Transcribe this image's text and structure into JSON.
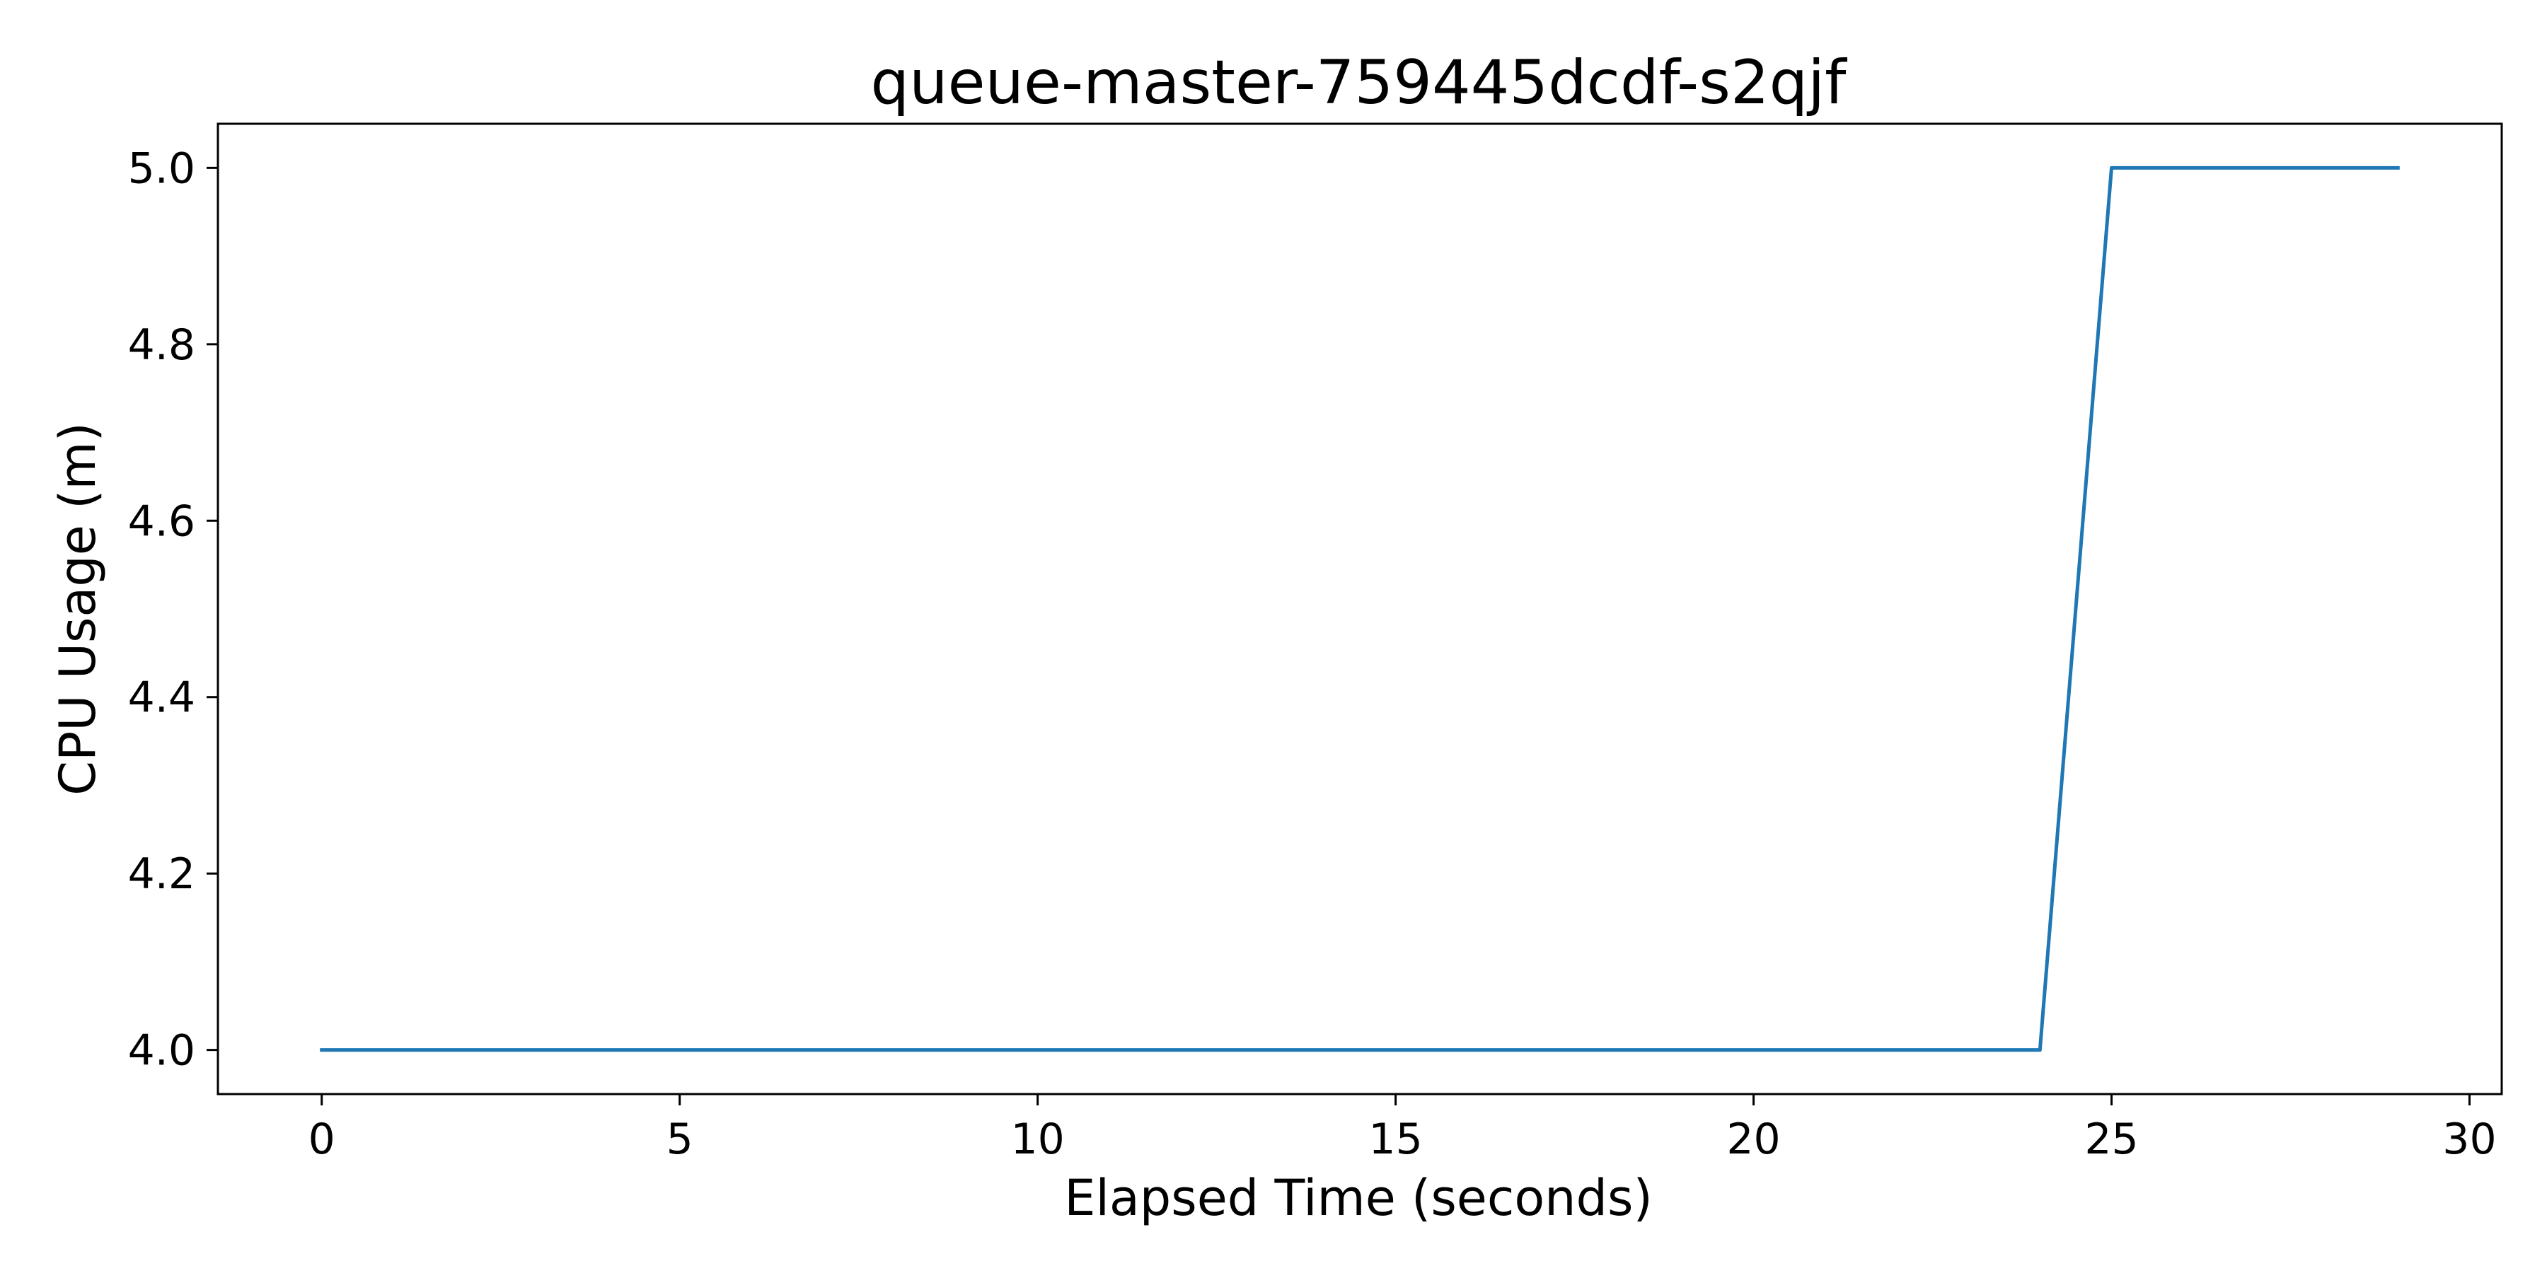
{
  "chart_data": {
    "type": "line",
    "title": "queue-master-759445dcdf-s2qjf",
    "xlabel": "Elapsed Time (seconds)",
    "ylabel": "CPU Usage (m)",
    "xlim": [
      -1.45,
      30.45
    ],
    "ylim": [
      3.95,
      5.05
    ],
    "xticks": [
      0,
      5,
      10,
      15,
      20,
      25,
      30
    ],
    "xtick_labels": [
      "0",
      "5",
      "10",
      "15",
      "20",
      "25",
      "30"
    ],
    "yticks": [
      4.0,
      4.2,
      4.4,
      4.6,
      4.8,
      5.0
    ],
    "ytick_labels": [
      "4.0",
      "4.2",
      "4.4",
      "4.6",
      "4.8",
      "5.0"
    ],
    "grid": false,
    "legend": "none",
    "series": [
      {
        "color": "#1f77b4",
        "x": [
          0,
          24,
          25,
          29
        ],
        "y": [
          4.0,
          4.0,
          5.0,
          5.0
        ]
      }
    ]
  }
}
